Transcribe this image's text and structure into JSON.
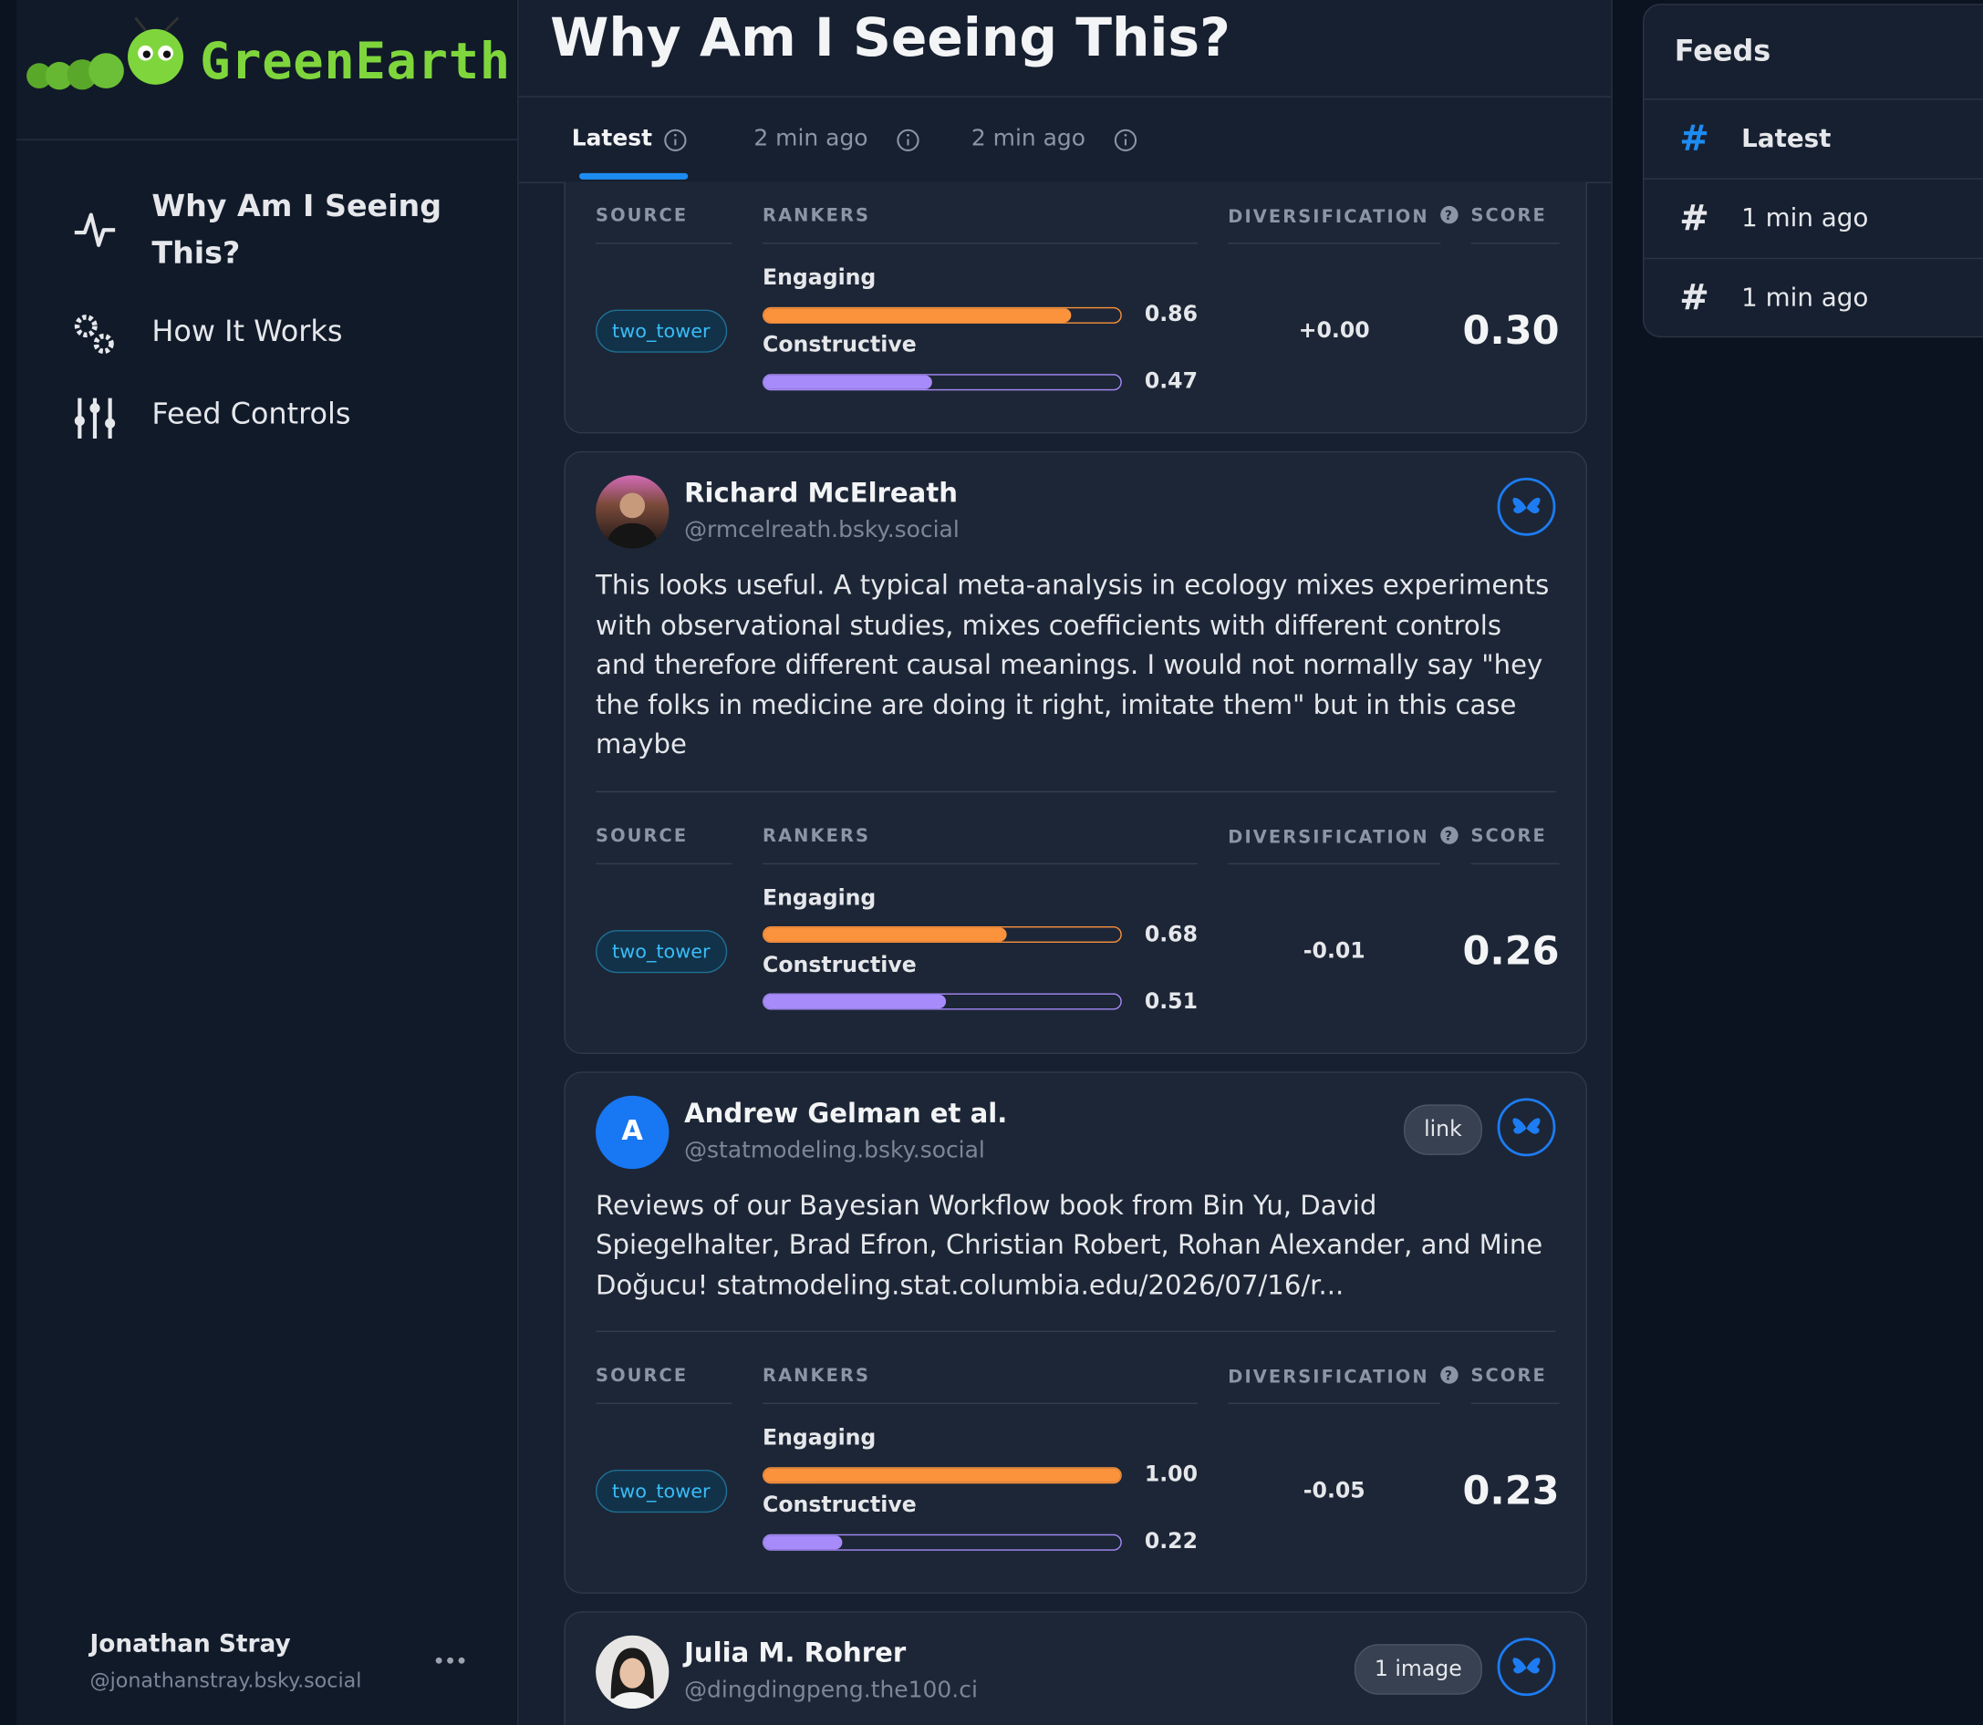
{
  "sidebar": {
    "logo": "GreenEarth",
    "nav": [
      "Why Am I Seeing This?",
      "How It Works",
      "Feed Controls"
    ],
    "user": {
      "name": "Jonathan Stray",
      "handle": "@jonathanstray.bsky.social"
    }
  },
  "header": {
    "title": "Why Am I Seeing This?",
    "tabs": [
      "Latest",
      "2 min ago",
      "2 min ago"
    ]
  },
  "columns": {
    "source": "SOURCE",
    "rankers": "RANKERS",
    "diversification": "DIVERSIFICATION",
    "score": "SCORE"
  },
  "posts": [
    {
      "source": "two_tower",
      "rankers": [
        {
          "name": "Engaging",
          "value": 0.86,
          "label": "0.86"
        },
        {
          "name": "Constructive",
          "value": 0.47,
          "label": "0.47"
        }
      ],
      "diversification": "+0.00",
      "score": "0.30"
    },
    {
      "author": "Richard McElreath",
      "handle": "@rmcelreath.bsky.social",
      "text": "This looks useful. A typical meta-analysis in ecology mixes experiments with observational studies, mixes coefficients with different controls and therefore different causal meanings. I would not normally say \"hey the folks in medicine are doing it right, imitate them\" but in this case maybe",
      "source": "two_tower",
      "rankers": [
        {
          "name": "Engaging",
          "value": 0.68,
          "label": "0.68"
        },
        {
          "name": "Constructive",
          "value": 0.51,
          "label": "0.51"
        }
      ],
      "diversification": "-0.01",
      "score": "0.26"
    },
    {
      "author": "Andrew Gelman et al.",
      "handle": "@statmodeling.bsky.social",
      "avatar_initial": "A",
      "attachment": "link",
      "text": "Reviews of our Bayesian Workflow book from Bin Yu, David Spiegelhalter, Brad Efron, Christian Robert, Rohan Alexander, and Mine Doğucu! statmodeling.stat.columbia.edu/2026/07/16/r...",
      "source": "two_tower",
      "rankers": [
        {
          "name": "Engaging",
          "value": 1,
          "label": "1.00"
        },
        {
          "name": "Constructive",
          "value": 0.22,
          "label": "0.22"
        }
      ],
      "diversification": "-0.05",
      "score": "0.23"
    },
    {
      "author": "Julia M. Rohrer",
      "handle": "@dingdingpeng.the100.ci",
      "attachment": "1 image"
    }
  ],
  "feeds": {
    "title": "Feeds",
    "items": [
      "Latest",
      "1 min ago",
      "1 min ago"
    ]
  }
}
